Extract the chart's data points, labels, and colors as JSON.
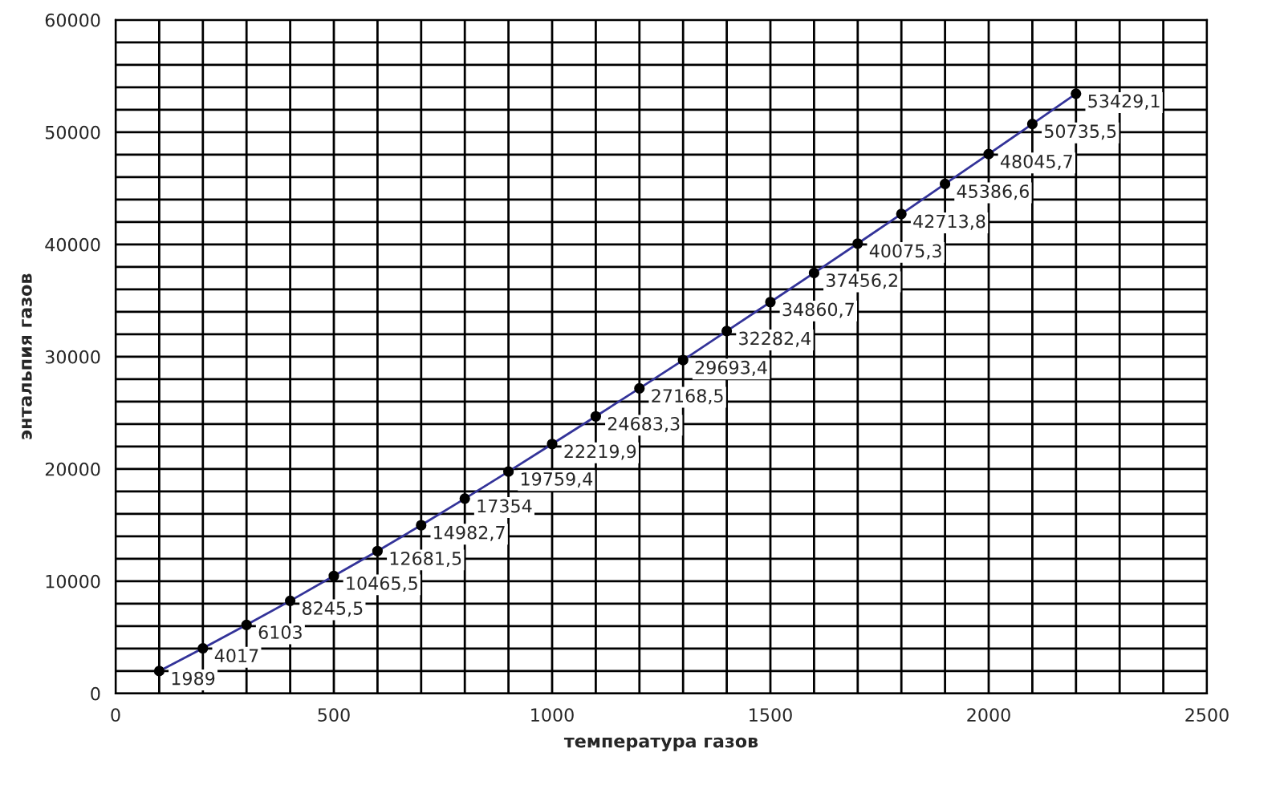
{
  "chart_data": {
    "type": "line",
    "xlabel": "температура газов",
    "ylabel": "энтальпия газов",
    "x": [
      100,
      200,
      300,
      400,
      500,
      600,
      700,
      800,
      900,
      1000,
      1100,
      1200,
      1300,
      1400,
      1500,
      1600,
      1700,
      1800,
      1900,
      2000,
      2100,
      2200
    ],
    "series": [
      {
        "color": "#333399",
        "values": [
          1989,
          4017,
          6103,
          8245.5,
          10465.5,
          12681.5,
          14982.7,
          17354,
          19759.4,
          22219.9,
          24683.3,
          27168.5,
          29693.4,
          32282.4,
          34860.7,
          37456.2,
          40075.3,
          42713.8,
          45386.6,
          48045.7,
          50735.5,
          53429.1
        ],
        "value_labels": [
          "1989",
          "4017",
          "6103",
          "8245,5",
          "10465,5",
          "12681,5",
          "14982,7",
          "17354",
          "19759,4",
          "22219,9",
          "24683,3",
          "27168,5",
          "29693,4",
          "32282,4",
          "34860,7",
          "37456,2",
          "40075,3",
          "42713,8",
          "45386,6",
          "48045,7",
          "50735,5",
          "53429,1"
        ]
      }
    ],
    "marker": "circle",
    "line_style": "solid",
    "grid": true,
    "legend": false,
    "xlim": [
      0,
      2500
    ],
    "ylim": [
      0,
      60000
    ],
    "xticks": [
      0,
      {
        "value": 100,
        "label": null
      },
      {
        "value": 200,
        "label": null
      },
      {
        "value": 300,
        "label": null
      },
      {
        "value": 400,
        "label": null
      },
      500,
      {
        "value": 600,
        "label": null
      },
      {
        "value": 700,
        "label": null
      },
      {
        "value": 800,
        "label": null
      },
      {
        "value": 900,
        "label": null
      },
      1000,
      {
        "value": 1100,
        "label": null
      },
      {
        "value": 1200,
        "label": null
      },
      {
        "value": 1300,
        "label": null
      },
      {
        "value": 1400,
        "label": null
      },
      1500,
      {
        "value": 1600,
        "label": null
      },
      {
        "value": 1700,
        "label": null
      },
      {
        "value": 1800,
        "label": null
      },
      {
        "value": 1900,
        "label": null
      },
      2000,
      {
        "value": 2100,
        "label": null
      },
      {
        "value": 2200,
        "label": null
      },
      {
        "value": 2300,
        "label": null
      },
      {
        "value": 2400,
        "label": null
      },
      2500
    ],
    "yticks": [
      0,
      {
        "value": 2000,
        "label": null
      },
      {
        "value": 4000,
        "label": null
      },
      {
        "value": 6000,
        "label": null
      },
      {
        "value": 8000,
        "label": null
      },
      10000,
      {
        "value": 12000,
        "label": null
      },
      {
        "value": 14000,
        "label": null
      },
      {
        "value": 16000,
        "label": null
      },
      {
        "value": 18000,
        "label": null
      },
      20000,
      {
        "value": 22000,
        "label": null
      },
      {
        "value": 24000,
        "label": null
      },
      {
        "value": 26000,
        "label": null
      },
      {
        "value": 28000,
        "label": null
      },
      30000,
      {
        "value": 32000,
        "label": null
      },
      {
        "value": 34000,
        "label": null
      },
      {
        "value": 36000,
        "label": null
      },
      {
        "value": 38000,
        "label": null
      },
      40000,
      {
        "value": 42000,
        "label": null
      },
      {
        "value": 44000,
        "label": null
      },
      {
        "value": 46000,
        "label": null
      },
      {
        "value": 48000,
        "label": null
      },
      50000,
      {
        "value": 52000,
        "label": null
      },
      {
        "value": 54000,
        "label": null
      },
      {
        "value": 56000,
        "label": null
      },
      {
        "value": 58000,
        "label": null
      },
      60000
    ]
  }
}
